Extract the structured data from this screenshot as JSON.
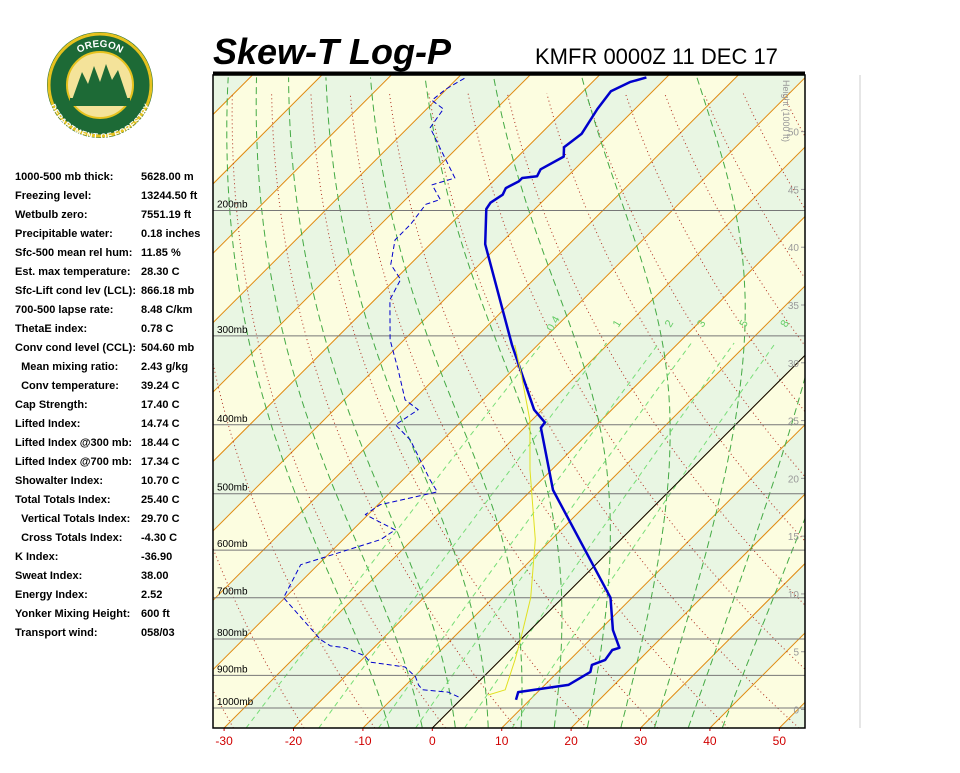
{
  "logo": {
    "top": "OREGON",
    "bottom": "DEPARTMENT OF FORESTRY"
  },
  "header": {
    "title": "Skew-T Log-P",
    "station": "KMFR 0000Z 11 DEC 17"
  },
  "indices": [
    {
      "label": "1000-500 mb thick:",
      "value": "5628.00 m"
    },
    {
      "label": "Freezing level:",
      "value": "13244.50 ft"
    },
    {
      "label": "Wetbulb zero:",
      "value": "7551.19 ft"
    },
    {
      "label": "Precipitable water:",
      "value": "0.18 inches"
    },
    {
      "label": "Sfc-500 mean rel hum:",
      "value": "11.85 %"
    },
    {
      "label": "Est. max temperature:",
      "value": "28.30 C"
    },
    {
      "label": "Sfc-Lift cond lev (LCL):",
      "value": "866.18 mb"
    },
    {
      "label": "700-500 lapse rate:",
      "value": "8.48 C/km"
    },
    {
      "label": "ThetaE index:",
      "value": "0.78 C"
    },
    {
      "label": "Conv cond level (CCL):",
      "value": "504.60 mb"
    },
    {
      "label": "  Mean mixing ratio:",
      "value": "2.43 g/kg"
    },
    {
      "label": "  Conv temperature:",
      "value": "39.24 C"
    },
    {
      "label": "Cap Strength:",
      "value": "17.40 C"
    },
    {
      "label": "Lifted Index:",
      "value": "14.74 C"
    },
    {
      "label": "Lifted Index @300 mb:",
      "value": "18.44 C"
    },
    {
      "label": "Lifted Index @700 mb:",
      "value": "17.34 C"
    },
    {
      "label": "Showalter Index:",
      "value": "10.70 C"
    },
    {
      "label": "Total Totals Index:",
      "value": "25.40 C"
    },
    {
      "label": "  Vertical Totals Index:",
      "value": "29.70 C"
    },
    {
      "label": "  Cross Totals Index:",
      "value": "-4.30 C"
    },
    {
      "label": "K Index:",
      "value": "-36.90"
    },
    {
      "label": "Sweat Index:",
      "value": "38.00"
    },
    {
      "label": "Energy Index:",
      "value": "2.52"
    },
    {
      "label": "Yonker Mixing Height:",
      "value": "600 ft"
    },
    {
      "label": "Transport wind:",
      "value": "058/03"
    }
  ],
  "chart_data": {
    "type": "skewt",
    "xlim": [
      -31.6,
      53.7
    ],
    "xticks": [
      -30,
      -20,
      -10,
      0,
      10,
      20,
      30,
      40,
      50
    ],
    "ylim": [
      1067,
      129
    ],
    "log_y": true,
    "yticks": [
      {
        "value": 200,
        "label": "200mb"
      },
      {
        "value": 300,
        "label": "300mb"
      },
      {
        "value": 400,
        "label": "400mb"
      },
      {
        "value": 500,
        "label": "500mb"
      },
      {
        "value": 600,
        "label": "600mb"
      },
      {
        "value": 700,
        "label": "700mb"
      },
      {
        "value": 800,
        "label": "800mb"
      },
      {
        "value": 900,
        "label": "900mb"
      },
      {
        "value": 1000,
        "label": "1000mb"
      }
    ],
    "y2label": "Height (1000 ft)",
    "y2lim": [
      -1.6,
      54.9
    ],
    "y2ticks": [
      0,
      5,
      10,
      15,
      20,
      25,
      30,
      35,
      40,
      45,
      50
    ],
    "highlight_isotherm": 0,
    "mixing_ratios": [
      0.4,
      1,
      2,
      3,
      5,
      8
    ],
    "series": [
      {
        "color": "#0000cc",
        "style": "solid",
        "pressure": [
          974,
          950,
          928,
          890,
          870,
          856,
          829,
          823,
          777,
          700,
          494,
          404,
          397,
          381,
          309,
          223,
          199,
          195,
          190,
          186,
          182,
          180,
          179,
          175,
          168,
          163,
          156,
          144,
          136,
          132,
          130
        ],
        "values": [
          8.0,
          7.2,
          13.4,
          14.7,
          13.9,
          15.1,
          14.7,
          15.4,
          11.9,
          6.9,
          -16.9,
          -27.6,
          -27.8,
          -31.2,
          -43.7,
          -62.1,
          -67.0,
          -67.3,
          -66.7,
          -67.2,
          -66.3,
          -66.3,
          -64.4,
          -64.9,
          -63.4,
          -64.7,
          -64.1,
          -65.4,
          -66.0,
          -64.6,
          -62.9
        ]
      },
      {
        "color": "#0000cc",
        "style": "dashed",
        "pressure": [
          965,
          950,
          943,
          928,
          904,
          876,
          862,
          845,
          823,
          818,
          802,
          700,
          629,
          580,
          562,
          535,
          518,
          497,
          478,
          420,
          400,
          381,
          369,
          335,
          304,
          267,
          250,
          238,
          220,
          209,
          196,
          193,
          184,
          180,
          164,
          153,
          144,
          140,
          135,
          130
        ],
        "values": [
          -0.7,
          -2.9,
          -6.9,
          -8.2,
          -9.8,
          -12.7,
          -18.5,
          -20.1,
          -24.1,
          -26.5,
          -28.8,
          -40.2,
          -42.5,
          -34.6,
          -33.9,
          -40.4,
          -39.7,
          -33.3,
          -36.1,
          -44.7,
          -49.0,
          -47.9,
          -51.2,
          -56.5,
          -62.0,
          -67.8,
          -69.2,
          -72.8,
          -75.7,
          -75.7,
          -76.4,
          -75.0,
          -78.3,
          -76.0,
          -82.2,
          -86.8,
          -87.6,
          -90.5,
          -90.1,
          -88.9
        ]
      },
      {
        "color": "#e0e020",
        "style": "thin",
        "pressure": [
          959,
          943,
          856,
          802,
          700,
          580,
          463,
          394,
          335,
          309
        ],
        "values": [
          3.3,
          5.0,
          2.1,
          0.0,
          -4.6,
          -12.3,
          -23.1,
          -30.3,
          -38.9,
          -43.3
        ]
      }
    ]
  }
}
